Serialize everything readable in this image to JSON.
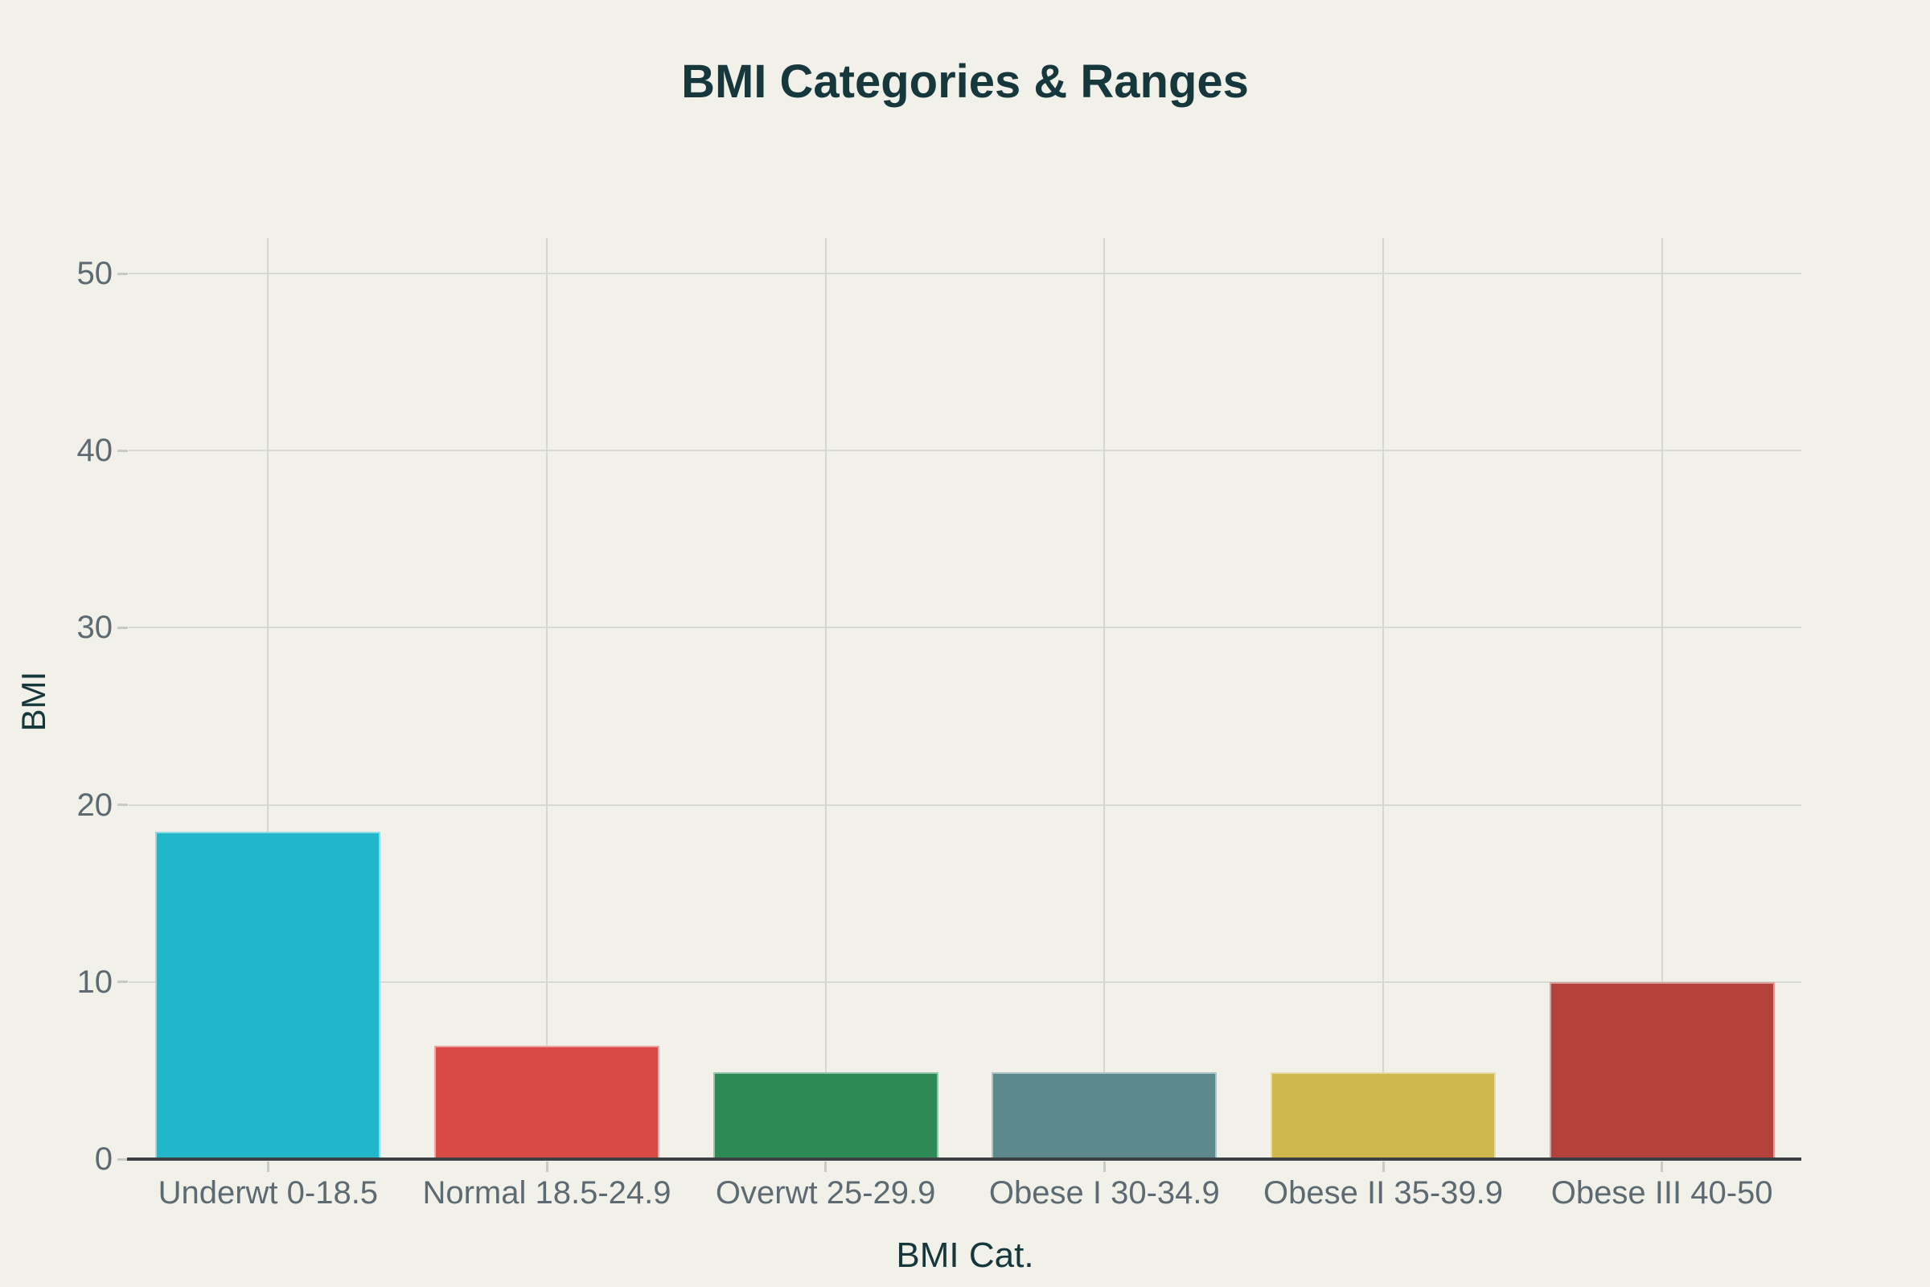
{
  "title": "BMI Categories & Ranges",
  "colors": {
    "background": "#f1f1ea",
    "title_text": "#16383d",
    "tick_label_text": "#5d6a71",
    "gridline": "#d8d9d1",
    "axis_line": "#3a3f41",
    "tick_mark": "#c9cac2"
  },
  "chart_data": {
    "type": "bar",
    "title": "BMI Categories & Ranges",
    "xlabel": "BMI Cat.",
    "ylabel": "BMI",
    "categories": [
      "Underwt 0-18.5",
      "Normal 18.5-24.9",
      "Overwt 25-29.9",
      "Obese I 30-34.9",
      "Obese II 35-39.9",
      "Obese III 40-50"
    ],
    "values": [
      18.5,
      6.4,
      4.9,
      4.9,
      4.9,
      10
    ],
    "bar_colors": [
      "#21b6c9",
      "#d84a46",
      "#2e8a55",
      "#5d898d",
      "#cfb84e",
      "#b5413c"
    ],
    "yticks": [
      0,
      10,
      20,
      30,
      40,
      50
    ],
    "ylim": [
      0,
      52
    ],
    "grid": true,
    "legend": false
  }
}
